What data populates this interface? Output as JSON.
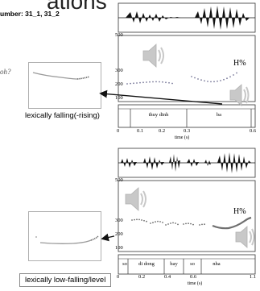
{
  "slide": {
    "title": "ations",
    "number_label": "umber: 31_1, 31_2"
  },
  "top": {
    "pitch_question": "oh?",
    "caption": "lexically falling(-rising)",
    "praat": {
      "f0_axis": {
        "top": "500",
        "mid": "300",
        "low": "200",
        "bottom": "100"
      },
      "boundary_tone": "H%",
      "words": [
        "thuy dinh",
        "ba"
      ],
      "time_ticks": [
        "0",
        "0.1",
        "0.2",
        "0.3",
        "0.6"
      ],
      "time_axis_title": "time (s)"
    }
  },
  "bottom": {
    "caption": "lexically low-falling/level",
    "praat": {
      "f0_axis": {
        "top": "500",
        "mid": "300",
        "low": "200",
        "bottom": "100"
      },
      "boundary_tone": "H%",
      "words": [
        "so",
        "di dong",
        "bay",
        "so",
        "nha"
      ],
      "time_ticks": [
        "0",
        "0.2",
        "0.4",
        "0.6",
        "1.1"
      ],
      "time_axis_title": "time (s)"
    }
  },
  "icons": {
    "speaker": "speaker-icon",
    "arrow": "arrow-pointer-icon"
  },
  "colors": {
    "pitch_track": "#7a7a9a",
    "pitch_curve": "#6f6f6f",
    "speaker_gray": "#c8c8c8",
    "arrow": "#111111"
  }
}
